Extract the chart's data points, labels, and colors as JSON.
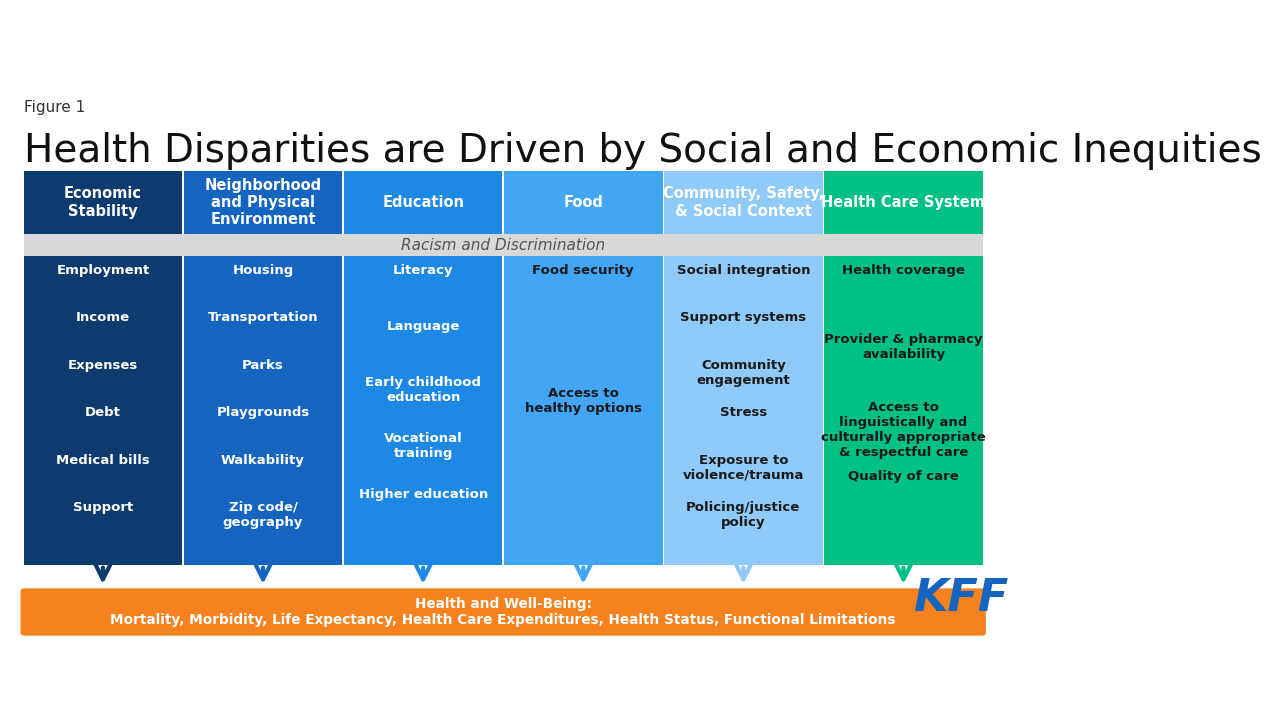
{
  "figure_label": "Figure 1",
  "title": "Health Disparities are Driven by Social and Economic Inequities",
  "background_color": "#ffffff",
  "header_row": [
    {
      "label": "Economic\nStability",
      "color": "#0d3b6e"
    },
    {
      "label": "Neighborhood\nand Physical\nEnvironment",
      "color": "#1565c0"
    },
    {
      "label": "Education",
      "color": "#1e88e5"
    },
    {
      "label": "Food",
      "color": "#42a5f5"
    },
    {
      "label": "Community, Safety,\n& Social Context",
      "color": "#90caf9"
    },
    {
      "label": "Health Care System",
      "color": "#00c084"
    }
  ],
  "racism_bar": {
    "label": "Racism and Discrimination",
    "color": "#d8d8d8",
    "text_color": "#555555"
  },
  "body_rows": [
    {
      "items": [
        "Employment",
        "Income",
        "Expenses",
        "Debt",
        "Medical bills",
        "Support"
      ],
      "color": "#0d3b6e",
      "text_color": "#ffffff"
    },
    {
      "items": [
        "Housing",
        "Transportation",
        "Parks",
        "Playgrounds",
        "Walkability",
        "Zip code/\ngeography"
      ],
      "color": "#1565c0",
      "text_color": "#ffffff"
    },
    {
      "items": [
        "Literacy",
        "Language",
        "Early childhood\neducation",
        "Vocational\ntraining",
        "Higher education"
      ],
      "color": "#1e88e5",
      "text_color": "#ffffff"
    },
    {
      "items": [
        "Food security",
        "Access to\nhealthy options"
      ],
      "color": "#42a5f5",
      "text_color": "#1a1a1a"
    },
    {
      "items": [
        "Social integration",
        "Support systems",
        "Community\nengagement",
        "Stress",
        "Exposure to\nviolence/trauma",
        "Policing/justice\npolicy"
      ],
      "color": "#90caf9",
      "text_color": "#1a1a1a"
    },
    {
      "items": [
        "Health coverage",
        "Provider & pharmacy\navailability",
        "Access to\nlinguistically and\nculturally appropriate\n& respectful care",
        "Quality of care"
      ],
      "color": "#00c084",
      "text_color": "#1a1a1a"
    }
  ],
  "arrow_colors": [
    "#0d3b6e",
    "#1565c0",
    "#1e88e5",
    "#42a5f5",
    "#90caf9",
    "#00c084"
  ],
  "outcome_box": {
    "label": "Health and Well-Being:\nMortality, Morbidity, Life Expectancy, Health Care Expenditures, Health Status, Functional Limitations",
    "color": "#f5821f",
    "text_color": "#ffffff"
  },
  "kff_color": "#1565c0"
}
